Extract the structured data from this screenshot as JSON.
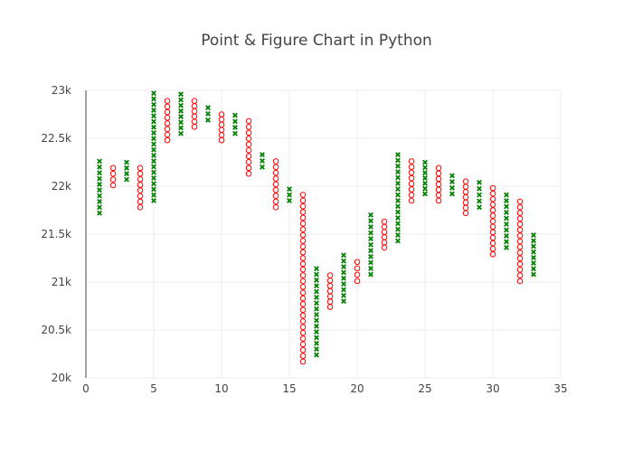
{
  "chart_data": {
    "type": "scatter",
    "title": "Point & Figure Chart in Python",
    "xlabel": "",
    "ylabel": "",
    "xlim": [
      0,
      35
    ],
    "ylim": [
      20000,
      23000
    ],
    "x_ticks": [
      0,
      5,
      10,
      15,
      20,
      25,
      30,
      35
    ],
    "x_tick_labels": [
      "0",
      "5",
      "10",
      "15",
      "20",
      "25",
      "30",
      "35"
    ],
    "y_ticks": [
      20000,
      20500,
      21000,
      21500,
      22000,
      22500,
      23000
    ],
    "y_tick_labels": [
      "20k",
      "20.5k",
      "21k",
      "21.5k",
      "22k",
      "22.5k",
      "23k"
    ],
    "grid": true,
    "legend": "none",
    "box_size": 60,
    "colors": {
      "x": "#008000",
      "o": "#ff0000",
      "axis": "#444444",
      "grid": "#eeeeee"
    },
    "columns": [
      {
        "x": 1,
        "type": "x",
        "low": 21720,
        "high": 22260
      },
      {
        "x": 2,
        "type": "o",
        "low": 22010,
        "high": 22190
      },
      {
        "x": 3,
        "type": "x",
        "low": 22070,
        "high": 22250
      },
      {
        "x": 4,
        "type": "o",
        "low": 21780,
        "high": 22190
      },
      {
        "x": 5,
        "type": "x",
        "low": 21850,
        "high": 22970
      },
      {
        "x": 6,
        "type": "o",
        "low": 22480,
        "high": 22890
      },
      {
        "x": 7,
        "type": "x",
        "low": 22550,
        "high": 22960
      },
      {
        "x": 8,
        "type": "o",
        "low": 22620,
        "high": 22890
      },
      {
        "x": 9,
        "type": "x",
        "low": 22690,
        "high": 22820
      },
      {
        "x": 10,
        "type": "o",
        "low": 22480,
        "high": 22750
      },
      {
        "x": 11,
        "type": "x",
        "low": 22550,
        "high": 22740
      },
      {
        "x": 12,
        "type": "o",
        "low": 22130,
        "high": 22680
      },
      {
        "x": 13,
        "type": "x",
        "low": 22200,
        "high": 22330
      },
      {
        "x": 14,
        "type": "o",
        "low": 21780,
        "high": 22260
      },
      {
        "x": 15,
        "type": "x",
        "low": 21850,
        "high": 21970
      },
      {
        "x": 16,
        "type": "o",
        "low": 20170,
        "high": 21910
      },
      {
        "x": 17,
        "type": "x",
        "low": 20240,
        "high": 21140
      },
      {
        "x": 18,
        "type": "o",
        "low": 20740,
        "high": 21070
      },
      {
        "x": 19,
        "type": "x",
        "low": 20800,
        "high": 21280
      },
      {
        "x": 20,
        "type": "o",
        "low": 21010,
        "high": 21210
      },
      {
        "x": 21,
        "type": "x",
        "low": 21080,
        "high": 21700
      },
      {
        "x": 22,
        "type": "o",
        "low": 21360,
        "high": 21630
      },
      {
        "x": 23,
        "type": "x",
        "low": 21430,
        "high": 22330
      },
      {
        "x": 24,
        "type": "o",
        "low": 21850,
        "high": 22260
      },
      {
        "x": 25,
        "type": "x",
        "low": 21920,
        "high": 22250
      },
      {
        "x": 26,
        "type": "o",
        "low": 21850,
        "high": 22190
      },
      {
        "x": 27,
        "type": "x",
        "low": 21920,
        "high": 22110
      },
      {
        "x": 28,
        "type": "o",
        "low": 21720,
        "high": 22050
      },
      {
        "x": 29,
        "type": "x",
        "low": 21780,
        "high": 22040
      },
      {
        "x": 30,
        "type": "o",
        "low": 21290,
        "high": 21980
      },
      {
        "x": 31,
        "type": "x",
        "low": 21360,
        "high": 21910
      },
      {
        "x": 32,
        "type": "o",
        "low": 21010,
        "high": 21840
      },
      {
        "x": 33,
        "type": "x",
        "low": 21080,
        "high": 21490
      }
    ]
  }
}
